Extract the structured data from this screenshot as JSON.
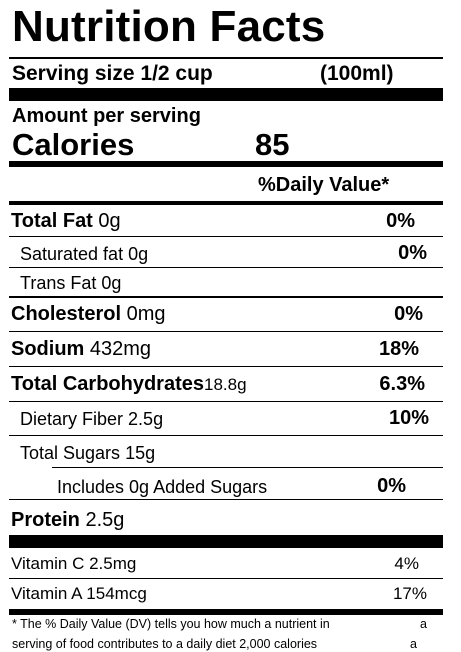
{
  "title": "Nutrition Facts",
  "serving": {
    "label": "Serving size 1/2 cup",
    "amount": "(100ml)"
  },
  "amount_per_serving": "Amount per serving",
  "calories": {
    "label": "Calories",
    "value": "85"
  },
  "dv_header": "%Daily Value*",
  "nutrients": {
    "total_fat": {
      "name": "Total Fat",
      "amount": "0g",
      "dv": "0%"
    },
    "saturated_fat": {
      "name": "Saturated fat",
      "amount": "0g",
      "dv": "0%"
    },
    "trans_fat": {
      "name": "Trans Fat",
      "amount": "0g"
    },
    "cholesterol": {
      "name": "Cholesterol",
      "amount": "0mg",
      "dv": "0%"
    },
    "sodium": {
      "name": "Sodium",
      "amount": "432mg",
      "dv": "18%"
    },
    "total_carbs": {
      "name": "Total Carbohydrates",
      "amount": "18.8g",
      "dv": "6.3%"
    },
    "dietary_fiber": {
      "name": "Dietary Fiber",
      "amount": "2.5g",
      "dv": "10%"
    },
    "total_sugars": {
      "name": "Total Sugars",
      "amount": "15g"
    },
    "added_sugars": {
      "text": "Includes 0g Added Sugars",
      "dv": "0%"
    },
    "protein": {
      "name": "Protein",
      "amount": "2.5g"
    }
  },
  "vitamins": {
    "vitamin_c": {
      "label": "Vitamin C 2.5mg",
      "dv": "4%"
    },
    "vitamin_a": {
      "label": "Vitamin A 154mcg",
      "dv": "17%"
    }
  },
  "footnote": {
    "line1": "* The % Daily Value (DV) tells you how much a nutrient in",
    "line1_end": "a",
    "line2": "serving of food contributes to a daily diet 2,000 calories",
    "line2_end": "a"
  }
}
